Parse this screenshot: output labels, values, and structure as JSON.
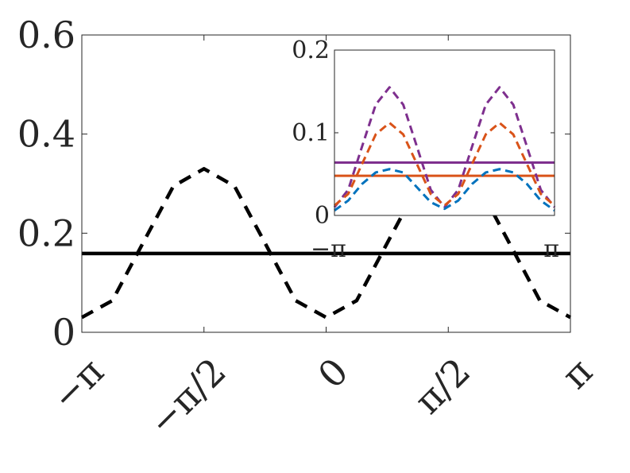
{
  "chart_data": [
    {
      "type": "line",
      "xlim": [
        -3.14159,
        3.14159
      ],
      "ylim": [
        0,
        0.6
      ],
      "xticks": [
        -3.14159,
        -1.5708,
        0,
        1.5708,
        3.14159
      ],
      "xtick_labels": [
        "−π",
        "−π/2",
        "0",
        "π/2",
        "π"
      ],
      "yticks": [
        0,
        0.2,
        0.4,
        0.6
      ],
      "ytick_labels": [
        "0",
        "0.2",
        "0.4",
        "0.6"
      ],
      "grid": false,
      "series": [
        {
          "style": "solid",
          "color": "#000000",
          "x": [
            -3.14159,
            3.14159
          ],
          "y": [
            0.159,
            0.159
          ]
        },
        {
          "style": "dashed",
          "color": "#000000",
          "x": [
            -3.14159,
            -2.7489,
            -2.3562,
            -1.9635,
            -1.5708,
            -1.1781,
            -0.7854,
            -0.3927,
            0,
            0.3927,
            0.7854,
            1.1781,
            1.5708,
            1.9635,
            2.3562,
            2.7489,
            3.14159
          ],
          "y": [
            0.03,
            0.064,
            0.18,
            0.295,
            0.33,
            0.295,
            0.18,
            0.064,
            0.03,
            0.064,
            0.18,
            0.295,
            0.33,
            0.295,
            0.18,
            0.064,
            0.03
          ]
        }
      ]
    },
    {
      "type": "line",
      "xlim": [
        -3.14159,
        3.14159
      ],
      "ylim": [
        0,
        0.2
      ],
      "xticks": [
        -3.14159,
        3.14159
      ],
      "xtick_labels": [
        "−π",
        "π"
      ],
      "yticks": [
        0,
        0.1,
        0.2
      ],
      "ytick_labels": [
        "0",
        "0.1",
        "0.2"
      ],
      "grid": false,
      "series": [
        {
          "style": "solid",
          "color": "#7e2f8e",
          "x": [
            -3.14159,
            3.14159
          ],
          "y": [
            0.064,
            0.064
          ]
        },
        {
          "style": "solid",
          "color": "#d95319",
          "x": [
            -3.14159,
            3.14159
          ],
          "y": [
            0.048,
            0.048
          ]
        },
        {
          "style": "dashed",
          "color": "#7e2f8e",
          "x": [
            -3.14159,
            -2.7489,
            -2.3562,
            -1.9635,
            -1.5708,
            -1.1781,
            -0.7854,
            -0.3927,
            0,
            0.3927,
            0.7854,
            1.1781,
            1.5708,
            1.9635,
            2.3562,
            2.7489,
            3.14159
          ],
          "y": [
            0.01,
            0.031,
            0.083,
            0.134,
            0.155,
            0.134,
            0.083,
            0.031,
            0.01,
            0.031,
            0.083,
            0.134,
            0.155,
            0.134,
            0.083,
            0.031,
            0.01
          ]
        },
        {
          "style": "dashed",
          "color": "#d95319",
          "x": [
            -3.14159,
            -2.7489,
            -2.3562,
            -1.9635,
            -1.5708,
            -1.1781,
            -0.7854,
            -0.3927,
            0,
            0.3927,
            0.7854,
            1.1781,
            1.5708,
            1.9635,
            2.3562,
            2.7489,
            3.14159
          ],
          "y": [
            0.012,
            0.026,
            0.062,
            0.098,
            0.112,
            0.098,
            0.062,
            0.026,
            0.012,
            0.026,
            0.062,
            0.098,
            0.112,
            0.098,
            0.062,
            0.026,
            0.012
          ]
        },
        {
          "style": "dashed",
          "color": "#0072bd",
          "x": [
            -3.14159,
            -2.7489,
            -2.3562,
            -1.9635,
            -1.5708,
            -1.1781,
            -0.7854,
            -0.3927,
            0,
            0.3927,
            0.7854,
            1.1781,
            1.5708,
            1.9635,
            2.3562,
            2.7489,
            3.14159
          ],
          "y": [
            0.006,
            0.018,
            0.038,
            0.052,
            0.056,
            0.052,
            0.034,
            0.016,
            0.008,
            0.018,
            0.038,
            0.052,
            0.056,
            0.052,
            0.038,
            0.018,
            0.006
          ]
        }
      ]
    }
  ]
}
